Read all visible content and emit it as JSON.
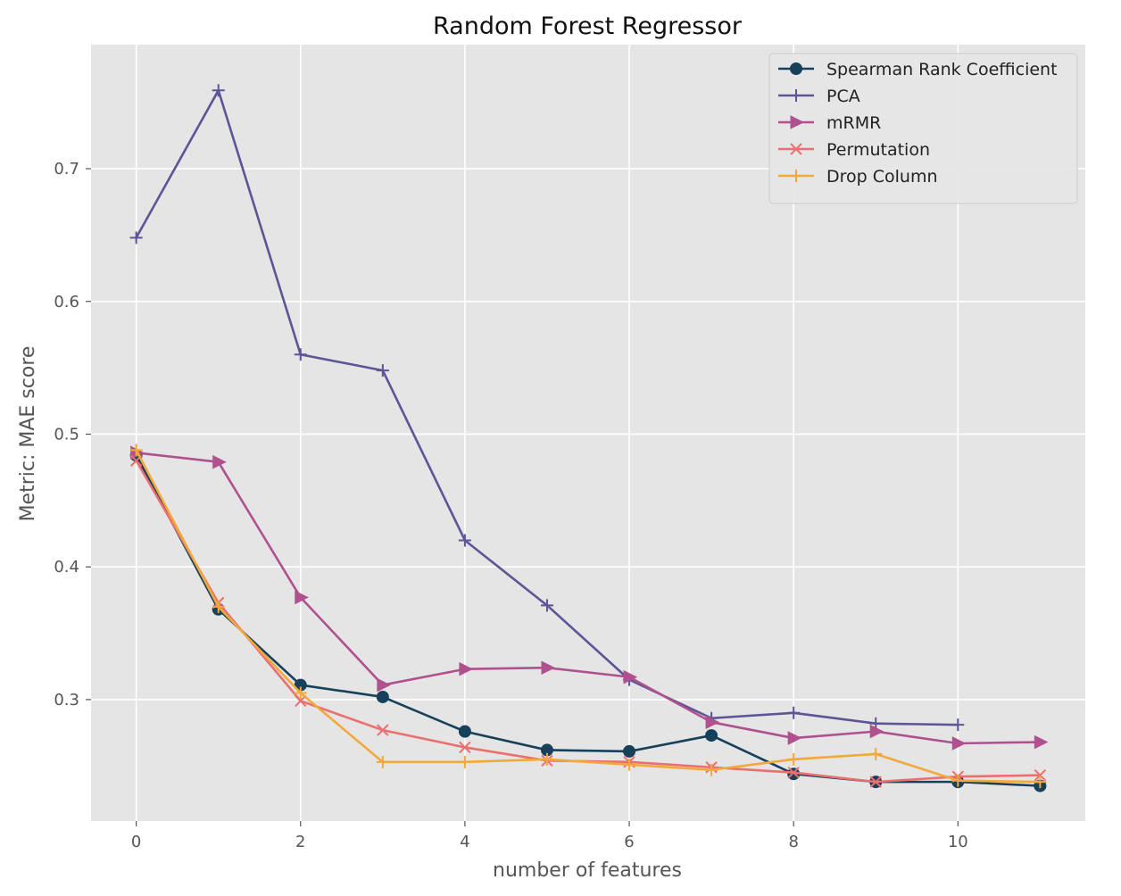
{
  "chart_data": {
    "type": "line",
    "title": "Random Forest Regressor",
    "xlabel": "number of features",
    "ylabel": "Metric: MAE score",
    "xlim": [
      -0.55,
      11.55
    ],
    "ylim": [
      0.2085,
      0.7935
    ],
    "xticks": [
      0,
      2,
      4,
      6,
      8,
      10
    ],
    "yticks": [
      0.3,
      0.4,
      0.5,
      0.6,
      0.7
    ],
    "ytick_labels": [
      "0.3",
      "0.4",
      "0.5",
      "0.6",
      "0.7"
    ],
    "grid": true,
    "legend_position": "top-right",
    "background": "#e5e5e5",
    "series": [
      {
        "name": "Spearman Rank Coefficient",
        "color": "#17405a",
        "marker": "circle",
        "x": [
          0,
          1,
          2,
          3,
          4,
          5,
          6,
          7,
          8,
          9,
          10,
          11
        ],
        "values": [
          0.484,
          0.368,
          0.311,
          0.302,
          0.276,
          0.262,
          0.261,
          0.273,
          0.244,
          0.238,
          0.238,
          0.235
        ]
      },
      {
        "name": "PCA",
        "color": "#5c5596",
        "marker": "plus",
        "x": [
          0,
          1,
          2,
          3,
          4,
          5,
          6,
          7,
          8,
          9,
          10
        ],
        "values": [
          0.648,
          0.759,
          0.56,
          0.548,
          0.42,
          0.371,
          0.315,
          0.286,
          0.29,
          0.282,
          0.281
        ]
      },
      {
        "name": "mRMR",
        "color": "#b0518f",
        "marker": "triangle-right",
        "x": [
          0,
          1,
          2,
          3,
          4,
          5,
          6,
          7,
          8,
          9,
          10,
          11
        ],
        "values": [
          0.486,
          0.479,
          0.377,
          0.311,
          0.323,
          0.324,
          0.317,
          0.283,
          0.271,
          0.276,
          0.267,
          0.268
        ]
      },
      {
        "name": "Permutation",
        "color": "#ec6f6f",
        "marker": "x",
        "x": [
          0,
          1,
          2,
          3,
          4,
          5,
          6,
          7,
          8,
          9,
          10,
          11
        ],
        "values": [
          0.48,
          0.373,
          0.299,
          0.277,
          0.264,
          0.254,
          0.253,
          0.249,
          0.245,
          0.238,
          0.242,
          0.243
        ]
      },
      {
        "name": "Drop Column",
        "color": "#f2a93b",
        "marker": "plus",
        "x": [
          0,
          1,
          2,
          3,
          4,
          5,
          6,
          7,
          8,
          9,
          10,
          11
        ],
        "values": [
          0.488,
          0.37,
          0.305,
          0.253,
          0.253,
          0.255,
          0.251,
          0.247,
          0.255,
          0.259,
          0.239,
          0.238
        ]
      }
    ]
  }
}
